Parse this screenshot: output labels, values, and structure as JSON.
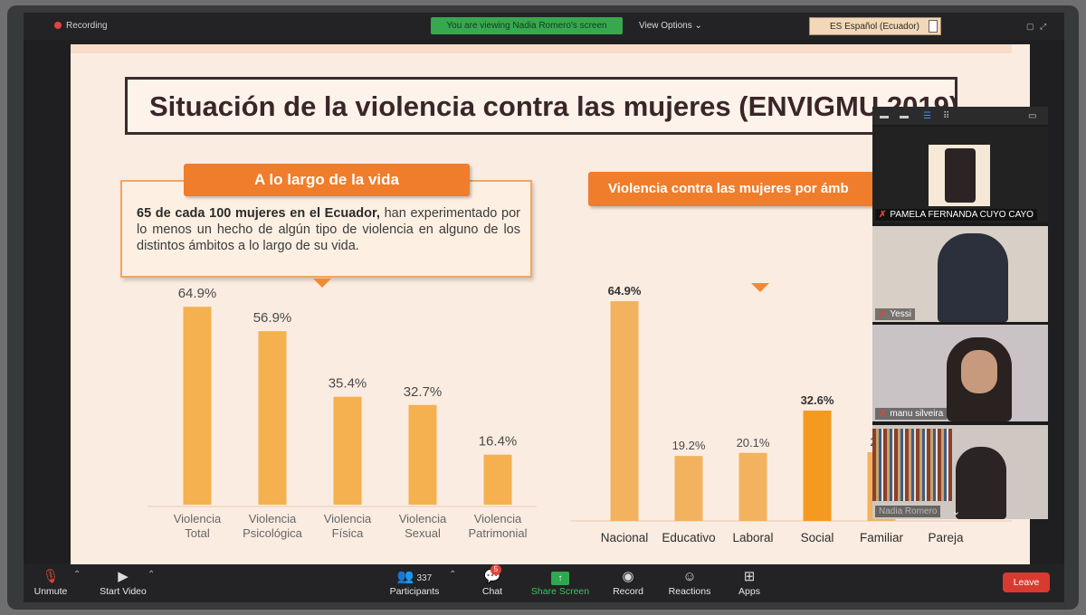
{
  "topbar": {
    "recording_label": "Recording",
    "viewing_banner": "You are viewing Nadia Romero's screen",
    "view_options": "View Options",
    "language": "ES Español (Ecuador)"
  },
  "slide": {
    "title": "Situación de la violencia contra las mujeres (ENVIGMU 2019)",
    "left_section": {
      "heading": "A lo largo de la vida",
      "description_bold": "65 de cada 100 mujeres en el Ecuador,",
      "description_rest": " han experimentado  por lo menos  un hecho de algún tipo de violencia en alguno de los distintos ámbitos a lo largo de su vida."
    },
    "right_section": {
      "heading": "Violencia contra las mujeres por ámb"
    }
  },
  "chart_data": [
    {
      "type": "bar",
      "categories": [
        "Violencia Total",
        "Violencia Psicológica",
        "Violencia Física",
        "Violencia Sexual",
        "Violencia Patrimonial"
      ],
      "category_lines": [
        [
          "Violencia",
          "Total"
        ],
        [
          "Violencia",
          "Psicológica"
        ],
        [
          "Violencia",
          "Física"
        ],
        [
          "Violencia",
          "Sexual"
        ],
        [
          "Violencia",
          "Patrimonial"
        ]
      ],
      "values": [
        64.9,
        56.9,
        35.4,
        32.7,
        16.4
      ],
      "labels": [
        "64.9%",
        "56.9%",
        "35.4%",
        "32.7%",
        "16.4%"
      ],
      "ylim": [
        0,
        70
      ],
      "grid": false
    },
    {
      "type": "bar",
      "categories": [
        "Nacional",
        "Educativo",
        "Laboral",
        "Social",
        "Familiar",
        "Pareja"
      ],
      "values": [
        64.9,
        19.2,
        20.1,
        32.6,
        20.3,
        null
      ],
      "labels": [
        "64.9%",
        "19.2%",
        "20.1%",
        "32.6%",
        "20.3",
        ""
      ],
      "ylim": [
        0,
        70
      ],
      "grid": false
    }
  ],
  "participants_panel": {
    "tiles": [
      {
        "name": "PAMELA FERNANDA CUYO CAYO",
        "muted": true
      },
      {
        "name": "Yessi",
        "muted": true
      },
      {
        "name": "manu silveira",
        "muted": true
      },
      {
        "name": "Nadia Romero",
        "muted": false
      }
    ]
  },
  "toolbar": {
    "unmute": "Unmute",
    "start_video": "Start Video",
    "participants": "Participants",
    "participants_count": "337",
    "chat": "Chat",
    "chat_badge": "5",
    "share_screen": "Share Screen",
    "record": "Record",
    "reactions": "Reactions",
    "apps": "Apps",
    "leave": "Leave"
  }
}
